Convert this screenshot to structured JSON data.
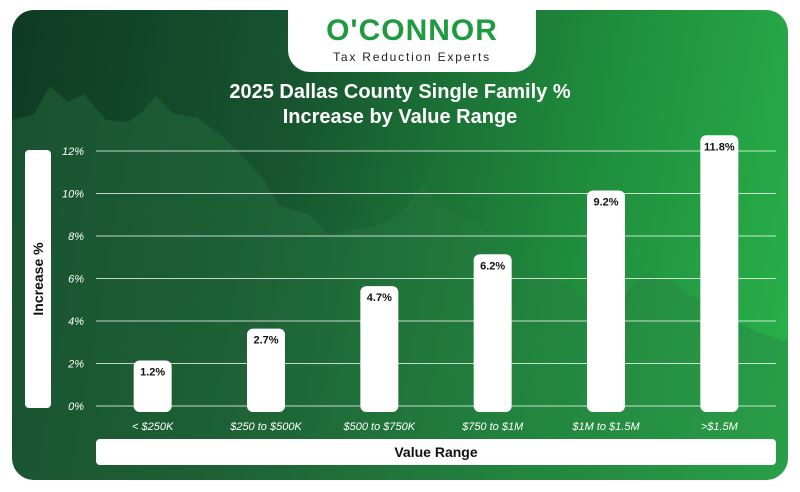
{
  "brand": {
    "name": "O'CONNOR",
    "tagline": "Tax Reduction Experts",
    "color": "#1f9a3f"
  },
  "chart_data": {
    "type": "bar",
    "title_lines": [
      "2025 Dallas County Single Family %",
      "Increase by Value Range"
    ],
    "xlabel": "Value Range",
    "ylabel": "Increase %",
    "categories": [
      "< $250K",
      "$250 to $500K",
      "$500 to $750K",
      "$750 to $1M",
      "$1M to $1.5M",
      ">$1.5M"
    ],
    "values": [
      1.2,
      2.7,
      4.7,
      6.2,
      9.2,
      11.8
    ],
    "value_labels": [
      "1.2%",
      "2.7%",
      "4.7%",
      "6.2%",
      "9.2%",
      "11.8%"
    ],
    "yticks": [
      0,
      2,
      4,
      6,
      8,
      10,
      12
    ],
    "ytick_labels": [
      "0%",
      "2%",
      "4%",
      "6%",
      "8%",
      "10%",
      "12%"
    ],
    "ylim": [
      0,
      12
    ],
    "grid": true,
    "bar_color": "#ffffff",
    "legend": "none"
  }
}
